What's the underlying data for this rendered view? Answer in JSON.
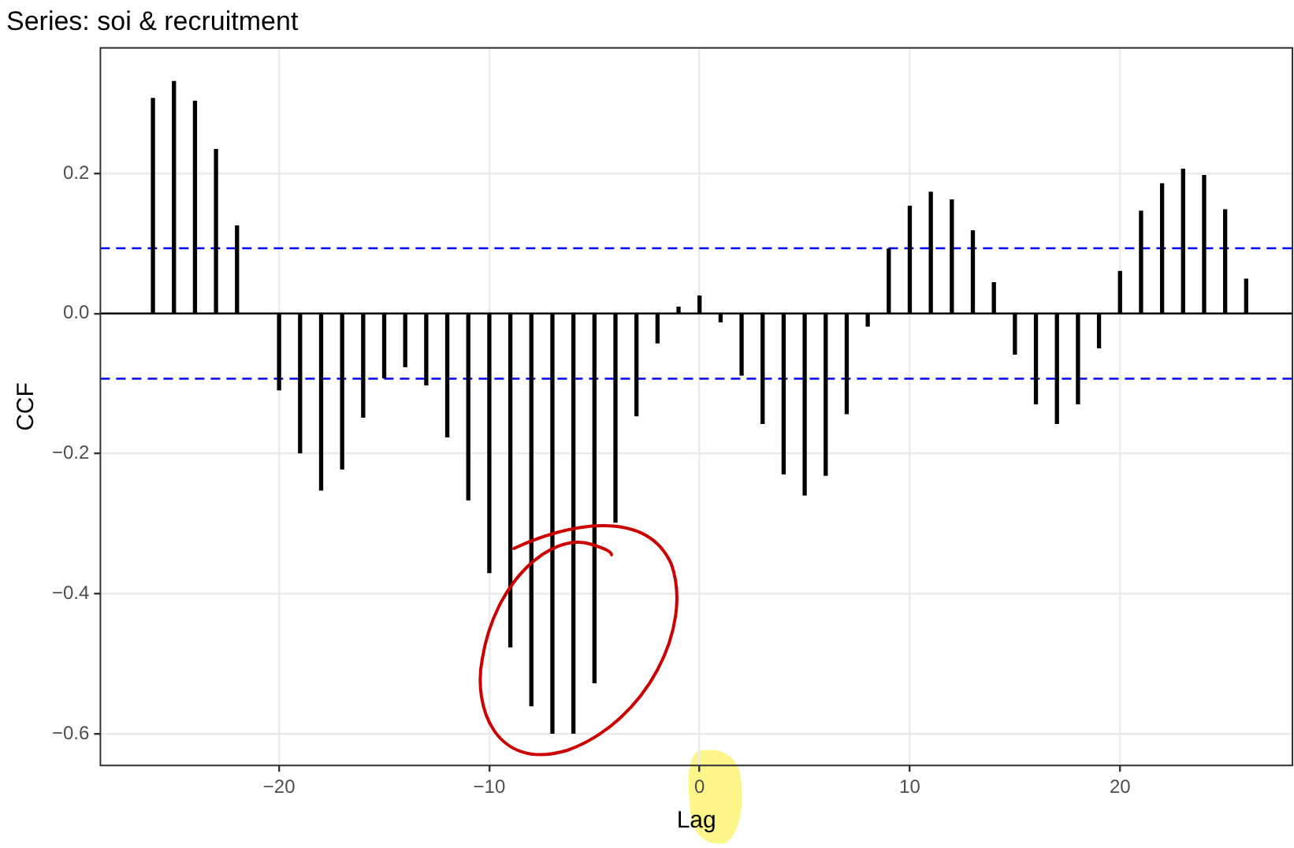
{
  "chart_data": {
    "type": "bar",
    "title": "Series: soi & recruitment",
    "xlabel": "Lag",
    "ylabel": "CCF",
    "x": [
      -26,
      -25,
      -24,
      -23,
      -22,
      -21,
      -20,
      -19,
      -18,
      -17,
      -16,
      -15,
      -14,
      -13,
      -12,
      -11,
      -10,
      -9,
      -8,
      -7,
      -6,
      -5,
      -4,
      -3,
      -2,
      -1,
      0,
      1,
      2,
      3,
      4,
      5,
      6,
      7,
      8,
      9,
      10,
      11,
      12,
      13,
      14,
      15,
      16,
      17,
      18,
      19,
      20,
      21,
      22,
      23,
      24,
      25,
      26
    ],
    "values": [
      0.307,
      0.331,
      0.303,
      0.234,
      0.125,
      0,
      -0.109,
      -0.199,
      -0.252,
      -0.222,
      -0.148,
      -0.092,
      -0.076,
      -0.102,
      -0.176,
      -0.266,
      -0.37,
      -0.476,
      -0.56,
      -0.599,
      -0.599,
      -0.527,
      -0.298,
      -0.146,
      -0.042,
      0.009,
      0.025,
      -0.012,
      -0.088,
      -0.157,
      -0.229,
      -0.259,
      -0.231,
      -0.143,
      -0.018,
      0.092,
      0.153,
      0.173,
      0.162,
      0.118,
      0.044,
      -0.058,
      -0.129,
      -0.157,
      -0.129,
      -0.049,
      0.06,
      0.146,
      0.185,
      0.206,
      0.197,
      0.148,
      0.049
    ],
    "color": "#000000",
    "xlim": [
      -28.5,
      28.2
    ],
    "xticks": [
      {
        "value": -20,
        "label": "−20"
      },
      {
        "value": -10,
        "label": "−10"
      },
      0,
      10,
      20
    ],
    "ylim": [
      -0.645,
      0.379
    ],
    "yticks": [
      {
        "value": -0.6,
        "label": "−0.6"
      },
      {
        "value": -0.4,
        "label": "−0.4"
      },
      {
        "value": -0.2,
        "label": "−0.2"
      },
      {
        "value": 0,
        "label": "0.0"
      },
      0.2
    ],
    "grid": true,
    "ref_lines": [
      {
        "axis": "y",
        "value": 0,
        "color": "#000000",
        "line_style": "solid"
      },
      {
        "axis": "y",
        "value": 0.093,
        "color": "#0000ff",
        "line_style": "dashed"
      },
      {
        "axis": "y",
        "value": -0.093,
        "color": "#0000ff",
        "line_style": "dashed"
      }
    ]
  }
}
